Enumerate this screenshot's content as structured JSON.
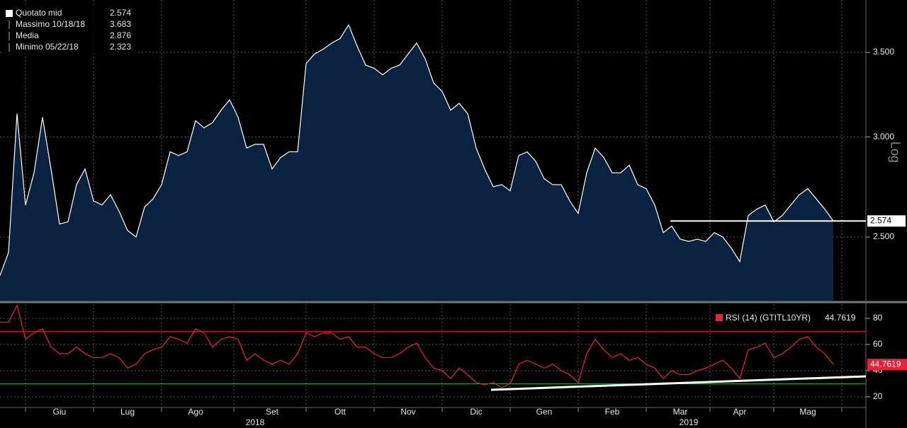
{
  "chart_data": [
    {
      "type": "area",
      "log_scale": true,
      "scale_label": "Log",
      "grid": true,
      "legend": [
        {
          "name": "Quotato mid",
          "value": 2.574
        },
        {
          "name": "Massimo 10/18/18",
          "value": 3.683
        },
        {
          "name": "Media",
          "value": 2.876
        },
        {
          "name": "Minimo 05/22/18",
          "value": 2.323
        }
      ],
      "categories": [
        null,
        null,
        null,
        null,
        null,
        null,
        null,
        "Giu",
        null,
        null,
        null,
        null,
        null,
        null,
        null,
        "Lug",
        null,
        null,
        null,
        null,
        null,
        null,
        null,
        "Ago",
        null,
        null,
        null,
        null,
        null,
        null,
        null,
        null,
        "Set",
        null,
        null,
        null,
        null,
        null,
        null,
        null,
        "Ott",
        null,
        null,
        null,
        null,
        null,
        null,
        null,
        "Nov",
        null,
        null,
        null,
        null,
        null,
        null,
        null,
        "Dic",
        null,
        null,
        null,
        null,
        null,
        null,
        null,
        "Gen",
        null,
        null,
        null,
        null,
        null,
        null,
        null,
        "Feb",
        null,
        null,
        null,
        null,
        null,
        null,
        null,
        "Mar",
        null,
        null,
        null,
        null,
        null,
        null,
        "Apr",
        null,
        null,
        null,
        null,
        null,
        null,
        null,
        "Mag",
        null,
        null,
        null,
        null,
        null,
        null
      ],
      "years": [
        null,
        null,
        null,
        null,
        null,
        null,
        null,
        null,
        null,
        null,
        null,
        null,
        null,
        null,
        null,
        null,
        null,
        null,
        null,
        null,
        null,
        null,
        null,
        null,
        null,
        null,
        null,
        null,
        null,
        null,
        "2018",
        null,
        null,
        null,
        null,
        null,
        null,
        null,
        null,
        null,
        null,
        null,
        null,
        null,
        null,
        null,
        null,
        null,
        null,
        null,
        null,
        null,
        null,
        null,
        null,
        null,
        null,
        null,
        null,
        null,
        null,
        null,
        null,
        null,
        null,
        null,
        null,
        null,
        null,
        null,
        null,
        null,
        null,
        null,
        null,
        null,
        null,
        null,
        null,
        null,
        null,
        "2019",
        null,
        null,
        null,
        null,
        null,
        null,
        null,
        null,
        null,
        null,
        null,
        null,
        null,
        null,
        null,
        null,
        null,
        null,
        null,
        null
      ],
      "series": [
        {
          "name": "Quotato mid",
          "color": "#ffffff",
          "fill": "#0b2140",
          "values": [
            2.33,
            2.43,
            3.13,
            2.65,
            2.81,
            3.11,
            2.83,
            2.56,
            2.57,
            2.75,
            2.83,
            2.67,
            2.65,
            2.7,
            2.62,
            2.53,
            2.5,
            2.64,
            2.68,
            2.75,
            2.92,
            2.9,
            2.92,
            3.09,
            3.05,
            3.08,
            3.15,
            3.21,
            3.11,
            2.94,
            2.96,
            2.96,
            2.83,
            2.89,
            2.92,
            2.92,
            3.43,
            3.49,
            3.52,
            3.56,
            3.59,
            3.68,
            3.54,
            3.42,
            3.4,
            3.36,
            3.4,
            3.42,
            3.49,
            3.56,
            3.46,
            3.31,
            3.26,
            3.15,
            3.19,
            3.13,
            2.94,
            2.83,
            2.74,
            2.75,
            2.72,
            2.9,
            2.92,
            2.87,
            2.78,
            2.75,
            2.75,
            2.67,
            2.61,
            2.81,
            2.94,
            2.89,
            2.81,
            2.81,
            2.85,
            2.75,
            2.73,
            2.65,
            2.52,
            2.55,
            2.49,
            2.48,
            2.49,
            2.48,
            2.52,
            2.5,
            2.45,
            2.39,
            2.6,
            2.63,
            2.65,
            2.57,
            2.6,
            2.65,
            2.7,
            2.73,
            2.68,
            2.63,
            2.574,
            null,
            null,
            null
          ]
        }
      ],
      "ylim": [
        2.226,
        3.826
      ],
      "yticks": [
        {
          "value": 2.5,
          "label": "2.500"
        },
        {
          "value": 3.0,
          "label": "3.000"
        },
        {
          "value": 3.5,
          "label": "3.500"
        }
      ]
    },
    {
      "type": "line",
      "grid": true,
      "series": [
        {
          "name": "RSI (14) (GTITL10YR)",
          "color": "#e8203a",
          "values": [
            77,
            77,
            90,
            64,
            69,
            72,
            58,
            53,
            53,
            58,
            53,
            50,
            50,
            53,
            50,
            42,
            45,
            53,
            56,
            58,
            66,
            64,
            61,
            72,
            69,
            58,
            64,
            66,
            64,
            48,
            53,
            48,
            45,
            48,
            45,
            53,
            69,
            66,
            69,
            69,
            64,
            66,
            58,
            58,
            53,
            50,
            50,
            53,
            58,
            61,
            50,
            42,
            40,
            34,
            42,
            37,
            31,
            29,
            31,
            27,
            30,
            45,
            48,
            45,
            42,
            45,
            40,
            37,
            31,
            53,
            64,
            56,
            50,
            53,
            48,
            50,
            45,
            42,
            34,
            40,
            37,
            37,
            40,
            42,
            45,
            48,
            42,
            34,
            56,
            58,
            61,
            50,
            53,
            58,
            64,
            66,
            58,
            53,
            44.7619,
            null,
            null,
            null
          ]
        }
      ],
      "upper_band": {
        "value": 70,
        "color": "#c8102e"
      },
      "lower_band": {
        "value": 30,
        "color": "#2a9d3a"
      },
      "ylim": [
        12.4,
        90.8
      ],
      "yticks": [
        20,
        40,
        60,
        80
      ]
    }
  ]
}
